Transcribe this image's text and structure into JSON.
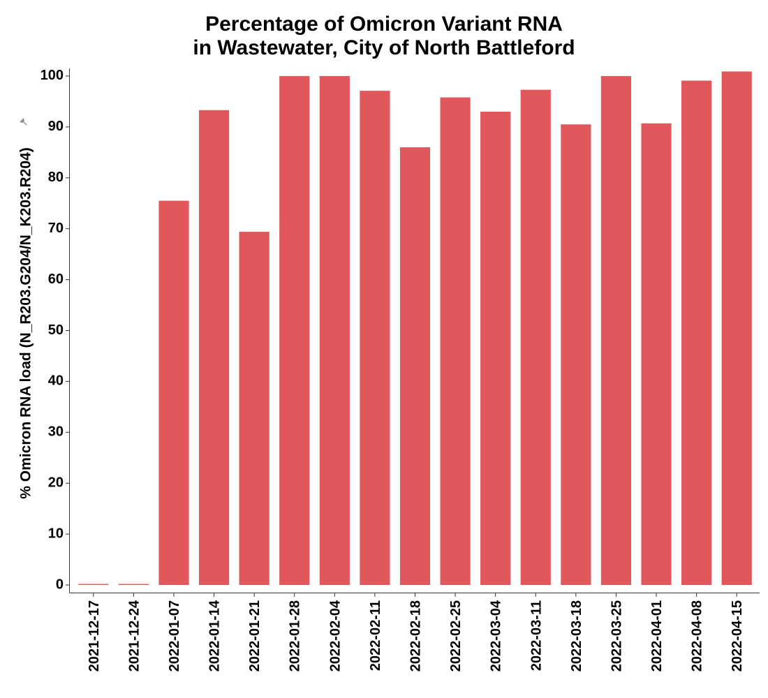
{
  "chart_data": {
    "type": "bar",
    "title": "Percentage of Omicron Variant RNA in Wastewater, City of North Battleford",
    "title_lines": [
      "Percentage of Omicron Variant RNA",
      "in Wastewater, City of North Battleford"
    ],
    "xlabel": "",
    "ylabel": "% Omicron RNA load (N_R203.G204/N_K203.R204)",
    "ylim": [
      -1.5,
      101.5
    ],
    "yticks": [
      0,
      10,
      20,
      30,
      40,
      50,
      60,
      70,
      80,
      90,
      100
    ],
    "categories": [
      "2021-12-17",
      "2021-12-24",
      "2022-01-07",
      "2022-01-14",
      "2022-01-21",
      "2022-01-28",
      "2022-02-04",
      "2022-02-11",
      "2022-02-18",
      "2022-02-25",
      "2022-03-04",
      "2022-03-11",
      "2022-03-18",
      "2022-03-25",
      "2022-04-01",
      "2022-04-08",
      "2022-04-15"
    ],
    "values": [
      0,
      0,
      75.5,
      93.3,
      69.4,
      100,
      100,
      97.1,
      86.0,
      95.8,
      93.0,
      97.3,
      90.5,
      100,
      90.7,
      99.1,
      100.9
    ],
    "bar_color": "#e0585b",
    "grid": false,
    "legend": "none"
  }
}
